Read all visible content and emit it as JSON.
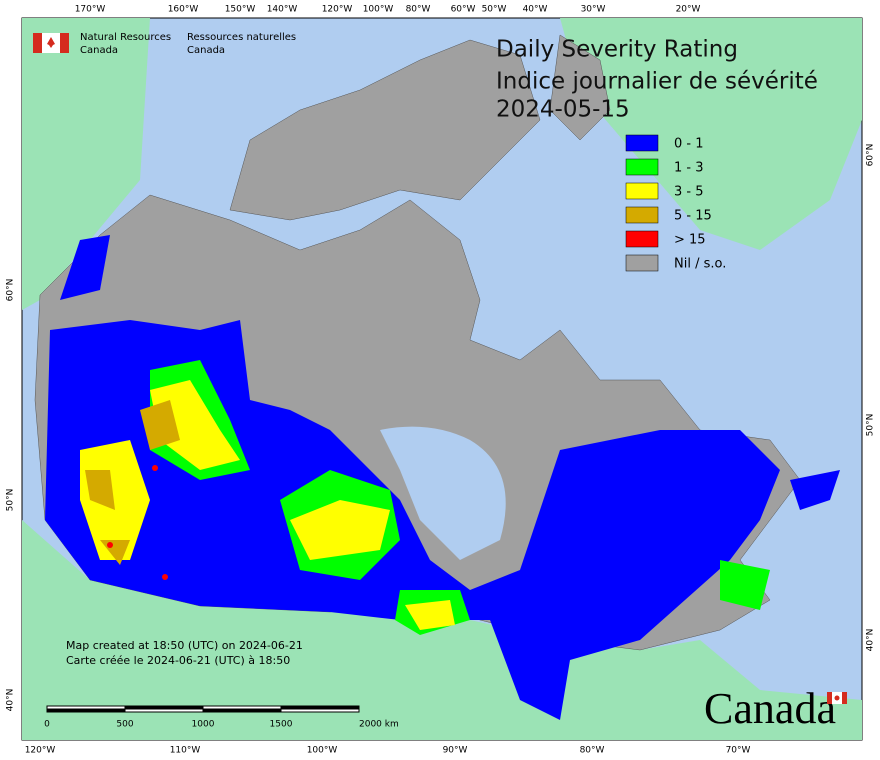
{
  "header": {
    "agency_en": [
      "Natural Resources",
      "Canada"
    ],
    "agency_fr": [
      "Ressources naturelles",
      "Canada"
    ]
  },
  "title": [
    "Daily Severity Rating",
    "Indice journalier de sévérité",
    "2024-05-15"
  ],
  "legend": [
    {
      "label": "0 - 1",
      "color": "#0000ff"
    },
    {
      "label": "1 - 3",
      "color": "#00ff00"
    },
    {
      "label": "3 - 5",
      "color": "#ffff00"
    },
    {
      "label": "5 - 15",
      "color": "#d4aa00"
    },
    {
      "label": "> 15",
      "color": "#ff0000"
    },
    {
      "label": "Nil / s.o.",
      "color": "#a0a0a0"
    }
  ],
  "graticule": {
    "top": [
      "170°W",
      "160°W",
      "150°W",
      "140°W",
      "120°W",
      "100°W",
      "80°W",
      "60°W",
      "50°W",
      "40°W",
      "30°W",
      "20°W"
    ],
    "bottom": [
      "120°W",
      "110°W",
      "100°W",
      "90°W",
      "80°W",
      "70°W"
    ],
    "left": [
      "60°N",
      "50°N",
      "40°N"
    ],
    "right": [
      "60°N",
      "50°N",
      "40°N"
    ]
  },
  "footer": [
    "Map created at 18:50 (UTC) on 2024-06-21",
    "Carte créée le 2024-06-21 (UTC) à 18:50"
  ],
  "scale_bar": [
    "0",
    "500",
    "1000",
    "1500",
    "2000 km"
  ],
  "wordmark": "Canada"
}
